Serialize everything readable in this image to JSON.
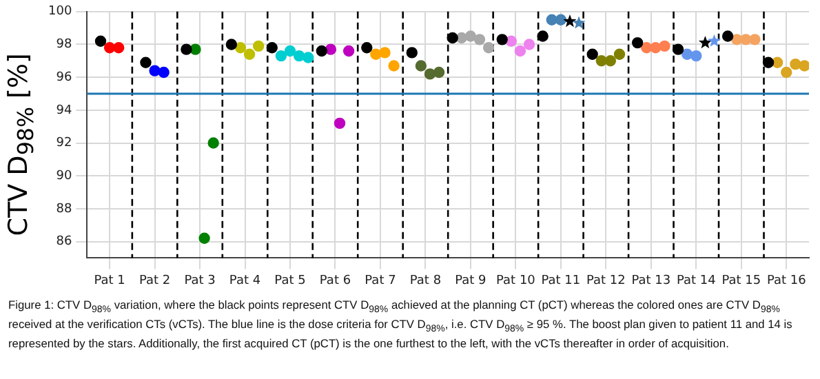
{
  "chart_data": {
    "type": "scatter",
    "ylabel": "CTV D$_{98%}$ [%]",
    "categories": [
      "Pat 1",
      "Pat 2",
      "Pat 3",
      "Pat 4",
      "Pat 5",
      "Pat 6",
      "Pat 7",
      "Pat 8",
      "Pat 9",
      "Pat 10",
      "Pat 11",
      "Pat 12",
      "Pat 13",
      "Pat 14",
      "Pat 15",
      "Pat 16"
    ],
    "ylim": [
      85,
      100
    ],
    "yticks": [
      86,
      88,
      90,
      92,
      94,
      96,
      98,
      100
    ],
    "grid": true,
    "marker": "circle",
    "series": [
      {
        "color": "#000000",
        "x": [
          "Pat 1",
          "Pat 2",
          "Pat 3",
          "Pat 4",
          "Pat 5",
          "Pat 6",
          "Pat 7",
          "Pat 8",
          "Pat 9",
          "Pat 10",
          "Pat 11",
          "Pat 12",
          "Pat 13",
          "Pat 14",
          "Pat 15",
          "Pat 16"
        ],
        "values": [
          98.2,
          96.9,
          97.7,
          98.0,
          97.8,
          97.6,
          97.8,
          97.5,
          98.4,
          98.3,
          98.5,
          97.4,
          98.1,
          97.7,
          98.5,
          96.9
        ]
      },
      {
        "color": "#ff0000",
        "x": [
          "Pat 1",
          "Pat 1"
        ],
        "values": [
          97.8,
          97.8
        ]
      },
      {
        "color": "#0000ff",
        "x": [
          "Pat 2",
          "Pat 2"
        ],
        "values": [
          96.4,
          96.3
        ]
      },
      {
        "color": "#008000",
        "x": [
          "Pat 3",
          "Pat 3",
          "Pat 3"
        ],
        "values": [
          97.7,
          86.2,
          92.0
        ]
      },
      {
        "color": "#bfbf00",
        "x": [
          "Pat 4",
          "Pat 4",
          "Pat 4"
        ],
        "values": [
          97.8,
          97.4,
          97.9
        ]
      },
      {
        "color": "#00ced1",
        "x": [
          "Pat 5",
          "Pat 5",
          "Pat 5",
          "Pat 5"
        ],
        "values": [
          97.3,
          97.6,
          97.3,
          97.2
        ]
      },
      {
        "color": "#bf00bf",
        "x": [
          "Pat 6",
          "Pat 6",
          "Pat 6"
        ],
        "values": [
          97.7,
          93.2,
          97.6
        ]
      },
      {
        "color": "#ffa500",
        "x": [
          "Pat 7",
          "Pat 7",
          "Pat 7"
        ],
        "values": [
          97.4,
          97.5,
          96.7
        ]
      },
      {
        "color": "#556b2f",
        "x": [
          "Pat 8",
          "Pat 8",
          "Pat 8"
        ],
        "values": [
          96.7,
          96.2,
          96.3
        ]
      },
      {
        "color": "#a9a9a9",
        "x": [
          "Pat 9",
          "Pat 9",
          "Pat 9",
          "Pat 9"
        ],
        "values": [
          98.4,
          98.5,
          98.3,
          97.8
        ]
      },
      {
        "color": "#ee82ee",
        "x": [
          "Pat 10",
          "Pat 10",
          "Pat 10"
        ],
        "values": [
          98.2,
          97.6,
          98.0
        ]
      },
      {
        "color": "#4682b4",
        "x": [
          "Pat 11",
          "Pat 11"
        ],
        "values": [
          99.5,
          99.5
        ]
      },
      {
        "color": "#808000",
        "x": [
          "Pat 12",
          "Pat 12",
          "Pat 12"
        ],
        "values": [
          97.0,
          97.0,
          97.4
        ]
      },
      {
        "color": "#ff7f50",
        "x": [
          "Pat 13",
          "Pat 13",
          "Pat 13"
        ],
        "values": [
          97.8,
          97.8,
          97.9
        ]
      },
      {
        "color": "#6495ed",
        "x": [
          "Pat 14",
          "Pat 14"
        ],
        "values": [
          97.4,
          97.3
        ]
      },
      {
        "color": "#f4a460",
        "x": [
          "Pat 15",
          "Pat 15",
          "Pat 15"
        ],
        "values": [
          98.3,
          98.3,
          98.3
        ]
      },
      {
        "color": "#daa520",
        "x": [
          "Pat 16",
          "Pat 16",
          "Pat 16",
          "Pat 16"
        ],
        "values": [
          96.9,
          96.3,
          96.8,
          96.7
        ]
      },
      {
        "marker": "star",
        "color": "#000000",
        "x": [
          "Pat 11",
          "Pat 14"
        ],
        "values": [
          99.4,
          98.1
        ]
      },
      {
        "marker": "star",
        "colors": [
          "#4682b4",
          "#6495ed"
        ],
        "x": [
          "Pat 11",
          "Pat 14"
        ],
        "values": [
          99.3,
          98.2
        ]
      }
    ],
    "ref_lines": [
      {
        "axis": "y",
        "value": 95,
        "color": "#1f77b4",
        "line_style": "solid"
      }
    ],
    "annotations": [
      "Figure 1: CTV D$_{98%}$ variation, where the black points represent CTV D$_{98%}$ achieved at the planning CT (pCT) whereas the colored ones are CTV D$_{98%}$ received at the verification CTs (vCTs). The blue line is the dose criteria for CTV D$_{98%}$, i.e. CTV D$_{98%}$ ≥ 95 %. The boost plan given to patient 11 and 14 is represented by the stars. Additionally, the first acquired CT (pCT) is the one furthest to the left, with the vCTs thereafter in order of acquisition."
    ]
  }
}
